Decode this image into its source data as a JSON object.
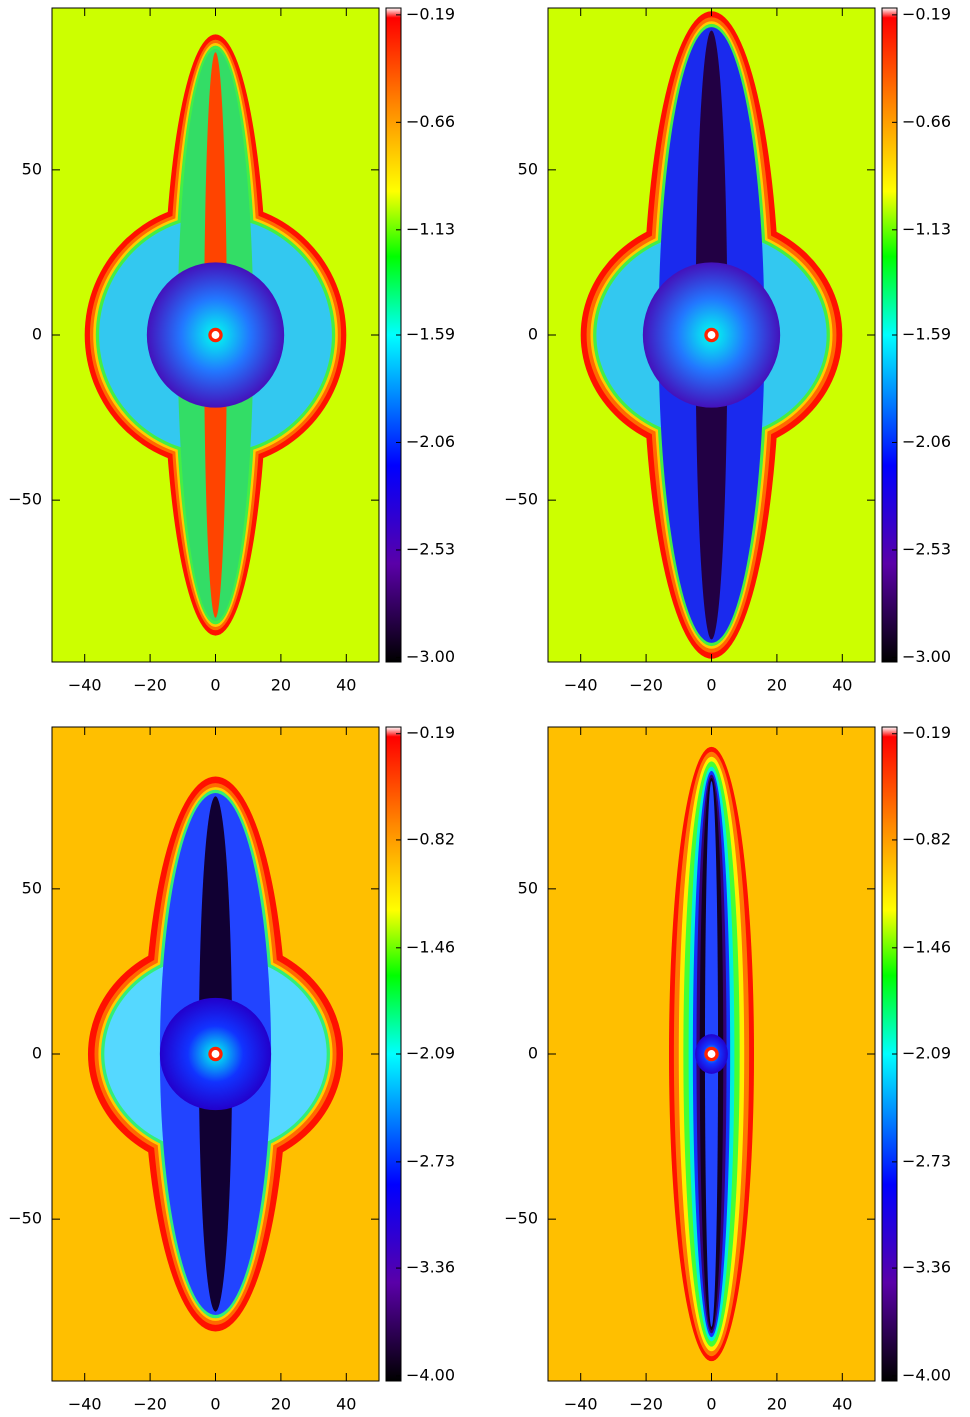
{
  "chart_data": [
    {
      "type": "heatmap",
      "xlim": [
        -50,
        50
      ],
      "ylim": [
        -99,
        99
      ],
      "xticks": [
        {
          "value": -40,
          "label": "−40"
        },
        {
          "value": -20,
          "label": "−20"
        },
        0,
        20,
        40
      ],
      "yticks": [
        {
          "value": -50,
          "label": "−50"
        },
        0,
        50
      ],
      "clim": [
        -3.02,
        -0.16
      ],
      "cticks": [
        {
          "value": -0.19,
          "label": "−0.19"
        },
        {
          "value": -0.66,
          "label": "−0.66"
        },
        {
          "value": -1.13,
          "label": "−1.13"
        },
        {
          "value": -1.59,
          "label": "−1.59"
        },
        {
          "value": -2.06,
          "label": "−2.06"
        },
        {
          "value": -2.53,
          "label": "−2.53"
        },
        {
          "value": -3.0,
          "label": "−3.00"
        }
      ],
      "background_color": "#ccff00"
    },
    {
      "type": "heatmap",
      "xlim": [
        -50,
        50
      ],
      "ylim": [
        -99,
        99
      ],
      "xticks": [
        {
          "value": -40,
          "label": "−40"
        },
        {
          "value": -20,
          "label": "−20"
        },
        0,
        20,
        40
      ],
      "yticks": [
        {
          "value": -50,
          "label": "−50"
        },
        0,
        50
      ],
      "clim": [
        -3.02,
        -0.16
      ],
      "cticks": [
        {
          "value": -0.19,
          "label": "−0.19"
        },
        {
          "value": -0.66,
          "label": "−0.66"
        },
        {
          "value": -1.13,
          "label": "−1.13"
        },
        {
          "value": -1.59,
          "label": "−1.59"
        },
        {
          "value": -2.06,
          "label": "−2.06"
        },
        {
          "value": -2.53,
          "label": "−2.53"
        },
        {
          "value": -3.0,
          "label": "−3.00"
        }
      ],
      "background_color": "#ccff00"
    },
    {
      "type": "heatmap",
      "xlim": [
        -50,
        50
      ],
      "ylim": [
        -99,
        99
      ],
      "xticks": [
        {
          "value": -40,
          "label": "−40"
        },
        {
          "value": -20,
          "label": "−20"
        },
        0,
        20,
        40
      ],
      "yticks": [
        {
          "value": -50,
          "label": "−50"
        },
        0,
        50
      ],
      "clim": [
        -4.03,
        -0.15
      ],
      "cticks": [
        {
          "value": -0.19,
          "label": "−0.19"
        },
        {
          "value": -0.82,
          "label": "−0.82"
        },
        {
          "value": -1.46,
          "label": "−1.46"
        },
        {
          "value": -2.09,
          "label": "−2.09"
        },
        {
          "value": -2.73,
          "label": "−2.73"
        },
        {
          "value": -3.36,
          "label": "−3.36"
        },
        {
          "value": -4.0,
          "label": "−4.00"
        }
      ],
      "background_color": "#ffbf00"
    },
    {
      "type": "heatmap",
      "xlim": [
        -50,
        50
      ],
      "ylim": [
        -99,
        99
      ],
      "xticks": [
        {
          "value": -40,
          "label": "−40"
        },
        {
          "value": -20,
          "label": "−20"
        },
        0,
        20,
        40
      ],
      "yticks": [
        {
          "value": -50,
          "label": "−50"
        },
        0,
        50
      ],
      "clim": [
        -4.03,
        -0.15
      ],
      "cticks": [
        {
          "value": -0.19,
          "label": "−0.19"
        },
        {
          "value": -0.82,
          "label": "−0.82"
        },
        {
          "value": -1.46,
          "label": "−1.46"
        },
        {
          "value": -2.09,
          "label": "−2.09"
        },
        {
          "value": -2.73,
          "label": "−2.73"
        },
        {
          "value": -3.36,
          "label": "−3.36"
        },
        {
          "value": -4.0,
          "label": "−4.00"
        }
      ],
      "background_color": "#ffbf00"
    }
  ]
}
